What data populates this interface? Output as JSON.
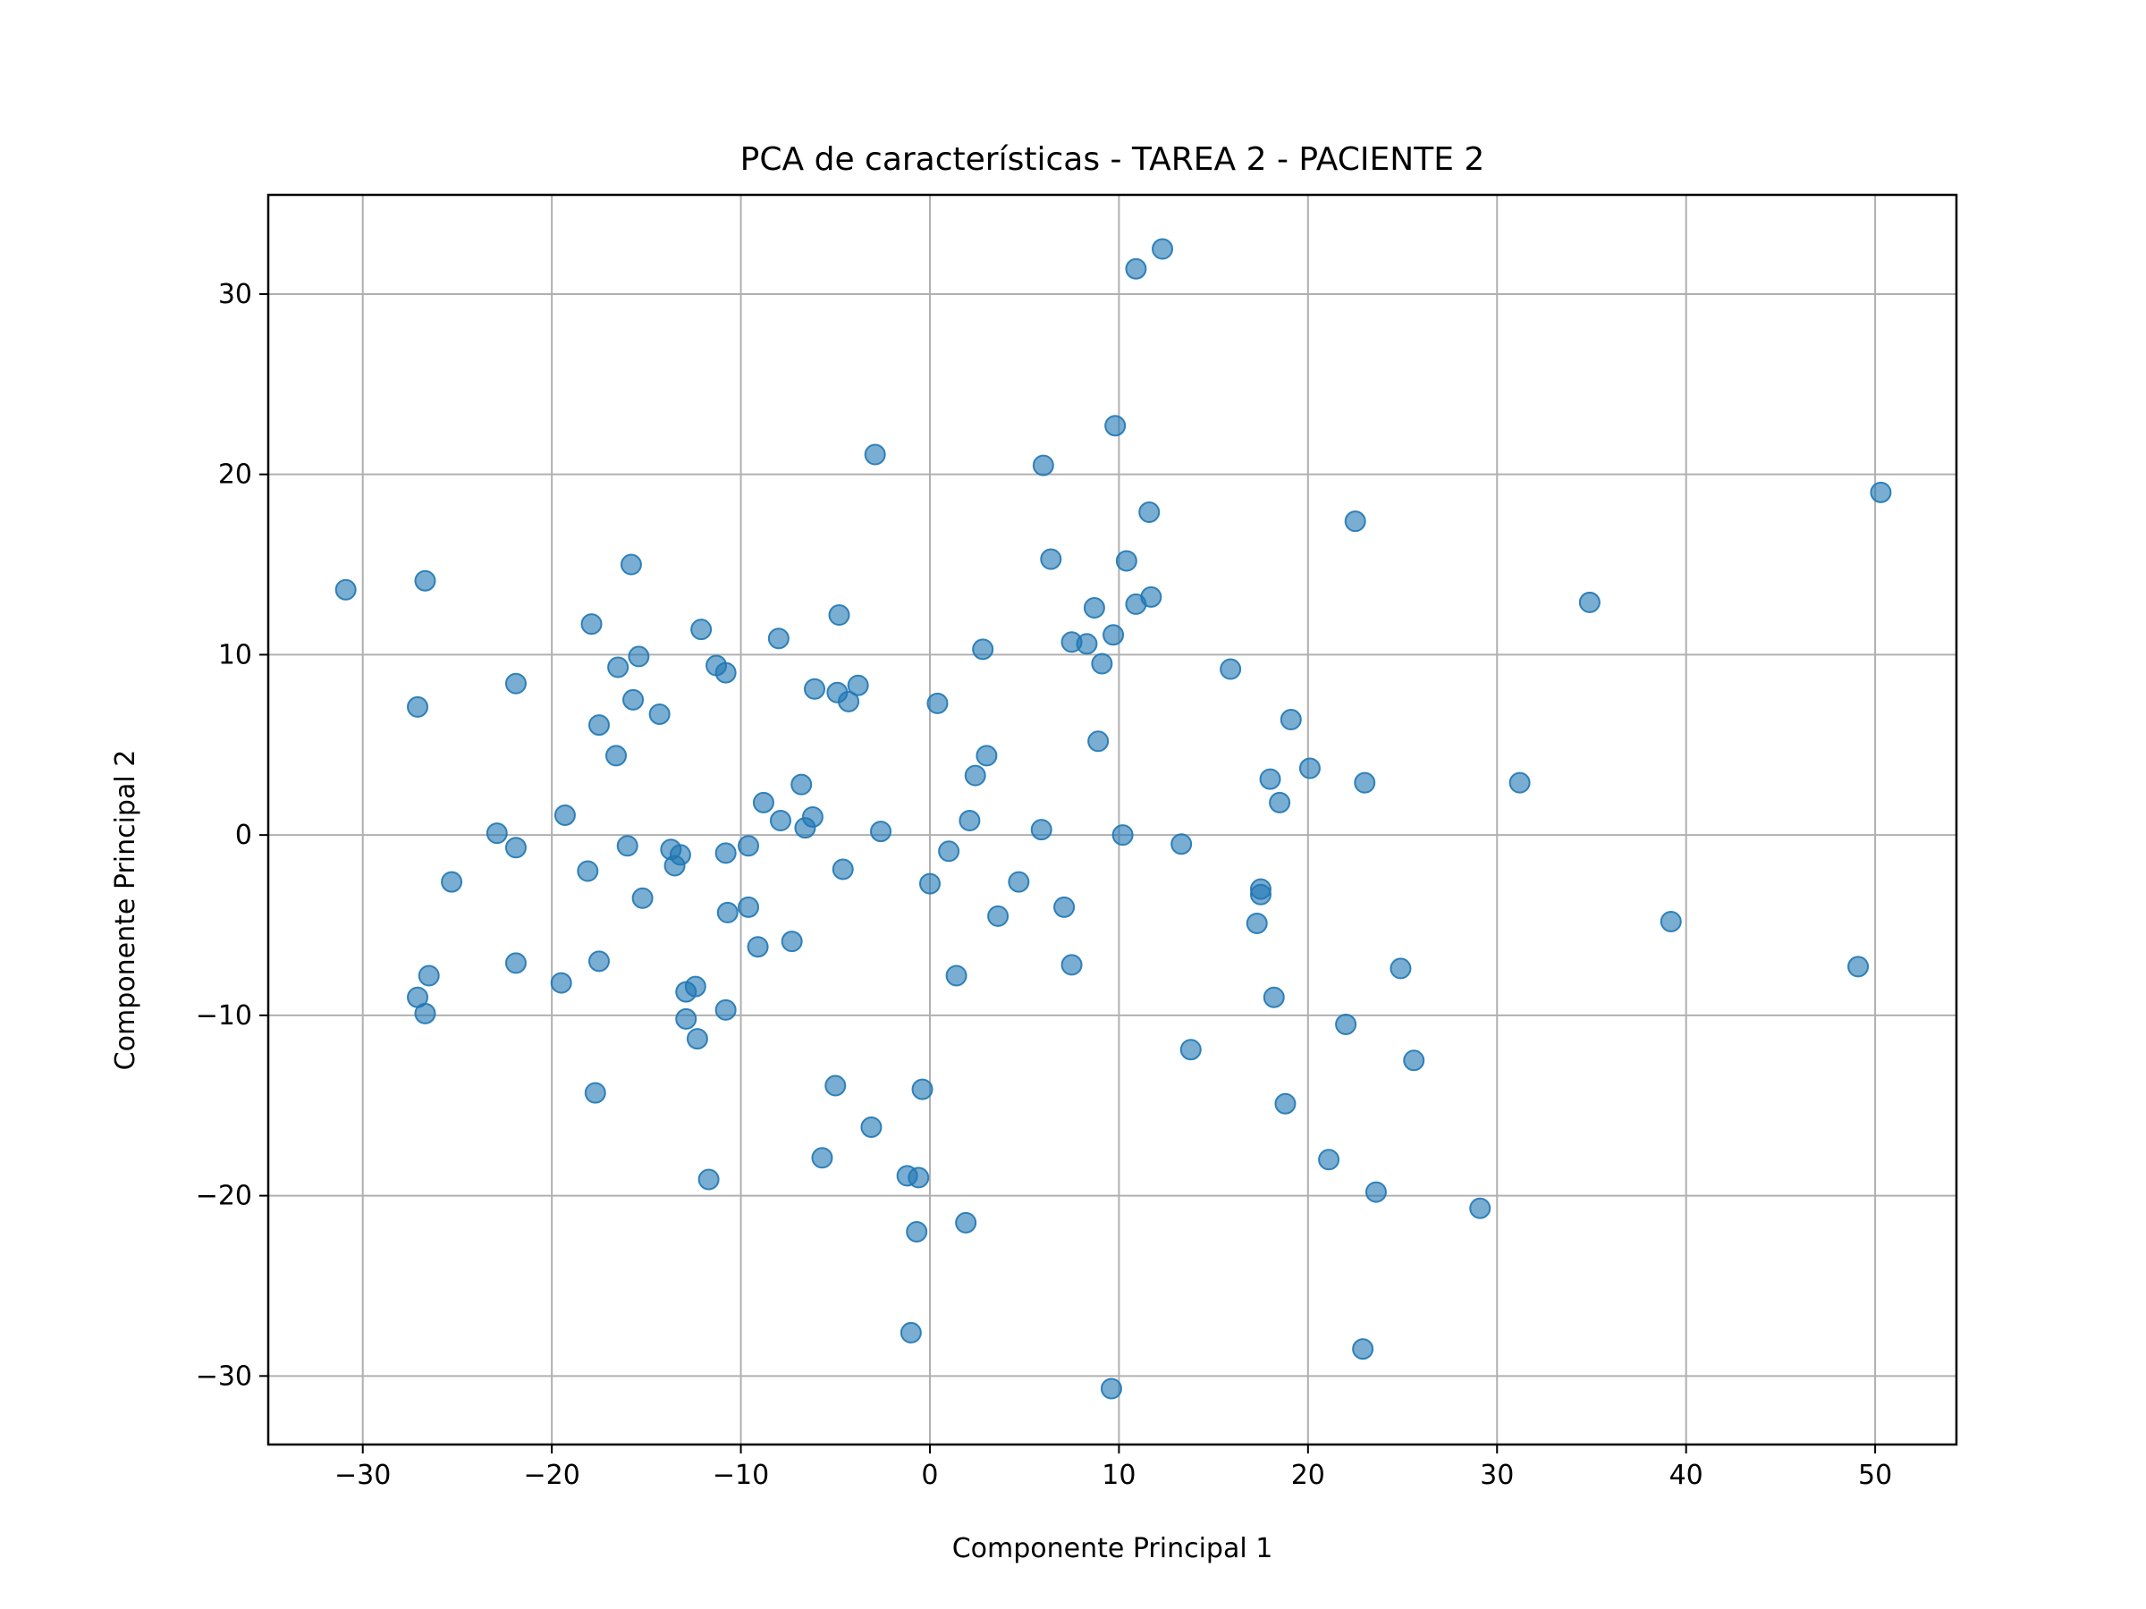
{
  "chart_data": {
    "type": "scatter",
    "title": "PCA de características - TAREA 2 - PACIENTE 2",
    "xlabel": "Componente Principal 1",
    "ylabel": "Componente Principal 2",
    "xlim": [
      -35,
      54.3
    ],
    "ylim": [
      -33.8,
      35.5
    ],
    "xticks": [
      -30,
      -20,
      -10,
      0,
      10,
      20,
      30,
      40,
      50
    ],
    "xtick_labels": [
      "−30",
      "−20",
      "−10",
      "0",
      "10",
      "20",
      "30",
      "40",
      "50"
    ],
    "yticks": [
      -30,
      -20,
      -10,
      0,
      10,
      20,
      30
    ],
    "ytick_labels": [
      "−30",
      "−20",
      "−10",
      "0",
      "10",
      "20",
      "30"
    ],
    "grid": true,
    "marker_color": "#1f77b4",
    "marker_alpha": 0.6,
    "series": [
      {
        "points": [
          [
            10.9,
            31.4
          ],
          [
            12.3,
            32.5
          ],
          [
            9.8,
            22.7
          ],
          [
            6.0,
            20.5
          ],
          [
            -2.9,
            21.1
          ],
          [
            50.3,
            19.0
          ],
          [
            11.6,
            17.9
          ],
          [
            22.5,
            17.4
          ],
          [
            -15.8,
            15.0
          ],
          [
            10.4,
            15.2
          ],
          [
            6.4,
            15.3
          ],
          [
            -30.9,
            13.6
          ],
          [
            -26.7,
            14.1
          ],
          [
            34.9,
            12.9
          ],
          [
            11.7,
            13.2
          ],
          [
            10.9,
            12.8
          ],
          [
            8.7,
            12.6
          ],
          [
            -4.8,
            12.2
          ],
          [
            -17.9,
            11.7
          ],
          [
            -12.1,
            11.4
          ],
          [
            9.7,
            11.1
          ],
          [
            -8.0,
            10.9
          ],
          [
            7.5,
            10.7
          ],
          [
            8.3,
            10.6
          ],
          [
            2.8,
            10.3
          ],
          [
            -15.4,
            9.9
          ],
          [
            -16.5,
            9.3
          ],
          [
            -11.3,
            9.4
          ],
          [
            -10.8,
            9.0
          ],
          [
            9.1,
            9.5
          ],
          [
            15.9,
            9.2
          ],
          [
            -21.9,
            8.4
          ],
          [
            -6.1,
            8.1
          ],
          [
            -4.9,
            7.9
          ],
          [
            -3.8,
            8.3
          ],
          [
            -4.3,
            7.4
          ],
          [
            -27.1,
            7.1
          ],
          [
            -15.7,
            7.5
          ],
          [
            -14.3,
            6.7
          ],
          [
            0.4,
            7.3
          ],
          [
            -17.5,
            6.1
          ],
          [
            19.1,
            6.4
          ],
          [
            8.9,
            5.2
          ],
          [
            -16.6,
            4.4
          ],
          [
            3.0,
            4.4
          ],
          [
            20.1,
            3.7
          ],
          [
            2.4,
            3.3
          ],
          [
            -6.8,
            2.8
          ],
          [
            18.0,
            3.1
          ],
          [
            23.0,
            2.9
          ],
          [
            31.2,
            2.9
          ],
          [
            -8.8,
            1.8
          ],
          [
            18.5,
            1.8
          ],
          [
            -19.3,
            1.1
          ],
          [
            -6.2,
            1.0
          ],
          [
            -7.9,
            0.8
          ],
          [
            2.1,
            0.8
          ],
          [
            -6.6,
            0.4
          ],
          [
            -2.6,
            0.2
          ],
          [
            5.9,
            0.3
          ],
          [
            -22.9,
            0.1
          ],
          [
            10.2,
            0.0
          ],
          [
            -16.0,
            -0.6
          ],
          [
            -21.9,
            -0.7
          ],
          [
            -13.7,
            -0.8
          ],
          [
            1.0,
            -0.9
          ],
          [
            -13.2,
            -1.1
          ],
          [
            -10.8,
            -1.0
          ],
          [
            -9.6,
            -0.6
          ],
          [
            13.3,
            -0.5
          ],
          [
            -13.5,
            -1.7
          ],
          [
            -18.1,
            -2.0
          ],
          [
            -4.6,
            -1.9
          ],
          [
            -25.3,
            -2.6
          ],
          [
            0.0,
            -2.7
          ],
          [
            4.7,
            -2.6
          ],
          [
            17.5,
            -3.0
          ],
          [
            17.5,
            -3.3
          ],
          [
            -15.2,
            -3.5
          ],
          [
            -9.6,
            -4.0
          ],
          [
            7.1,
            -4.0
          ],
          [
            -10.7,
            -4.3
          ],
          [
            3.6,
            -4.5
          ],
          [
            17.3,
            -4.9
          ],
          [
            39.2,
            -4.8
          ],
          [
            -7.3,
            -5.9
          ],
          [
            -9.1,
            -6.2
          ],
          [
            -21.9,
            -7.1
          ],
          [
            -17.5,
            -7.0
          ],
          [
            7.5,
            -7.2
          ],
          [
            24.9,
            -7.4
          ],
          [
            49.1,
            -7.3
          ],
          [
            -26.5,
            -7.8
          ],
          [
            1.4,
            -7.8
          ],
          [
            -19.5,
            -8.2
          ],
          [
            -12.4,
            -8.4
          ],
          [
            -12.9,
            -8.7
          ],
          [
            -27.1,
            -9.0
          ],
          [
            18.2,
            -9.0
          ],
          [
            -26.7,
            -9.9
          ],
          [
            -10.8,
            -9.7
          ],
          [
            -12.9,
            -10.2
          ],
          [
            22.0,
            -10.5
          ],
          [
            -12.3,
            -11.3
          ],
          [
            13.8,
            -11.9
          ],
          [
            25.6,
            -12.5
          ],
          [
            -5.0,
            -13.9
          ],
          [
            -0.4,
            -14.1
          ],
          [
            -17.7,
            -14.3
          ],
          [
            18.8,
            -14.9
          ],
          [
            -3.1,
            -16.2
          ],
          [
            -5.7,
            -17.9
          ],
          [
            21.1,
            -18.0
          ],
          [
            -1.2,
            -18.9
          ],
          [
            -0.6,
            -19.0
          ],
          [
            -11.7,
            -19.1
          ],
          [
            23.6,
            -19.8
          ],
          [
            29.1,
            -20.7
          ],
          [
            1.9,
            -21.5
          ],
          [
            -0.7,
            -22.0
          ],
          [
            -1.0,
            -27.6
          ],
          [
            22.9,
            -28.5
          ],
          [
            9.6,
            -30.7
          ]
        ]
      }
    ]
  }
}
